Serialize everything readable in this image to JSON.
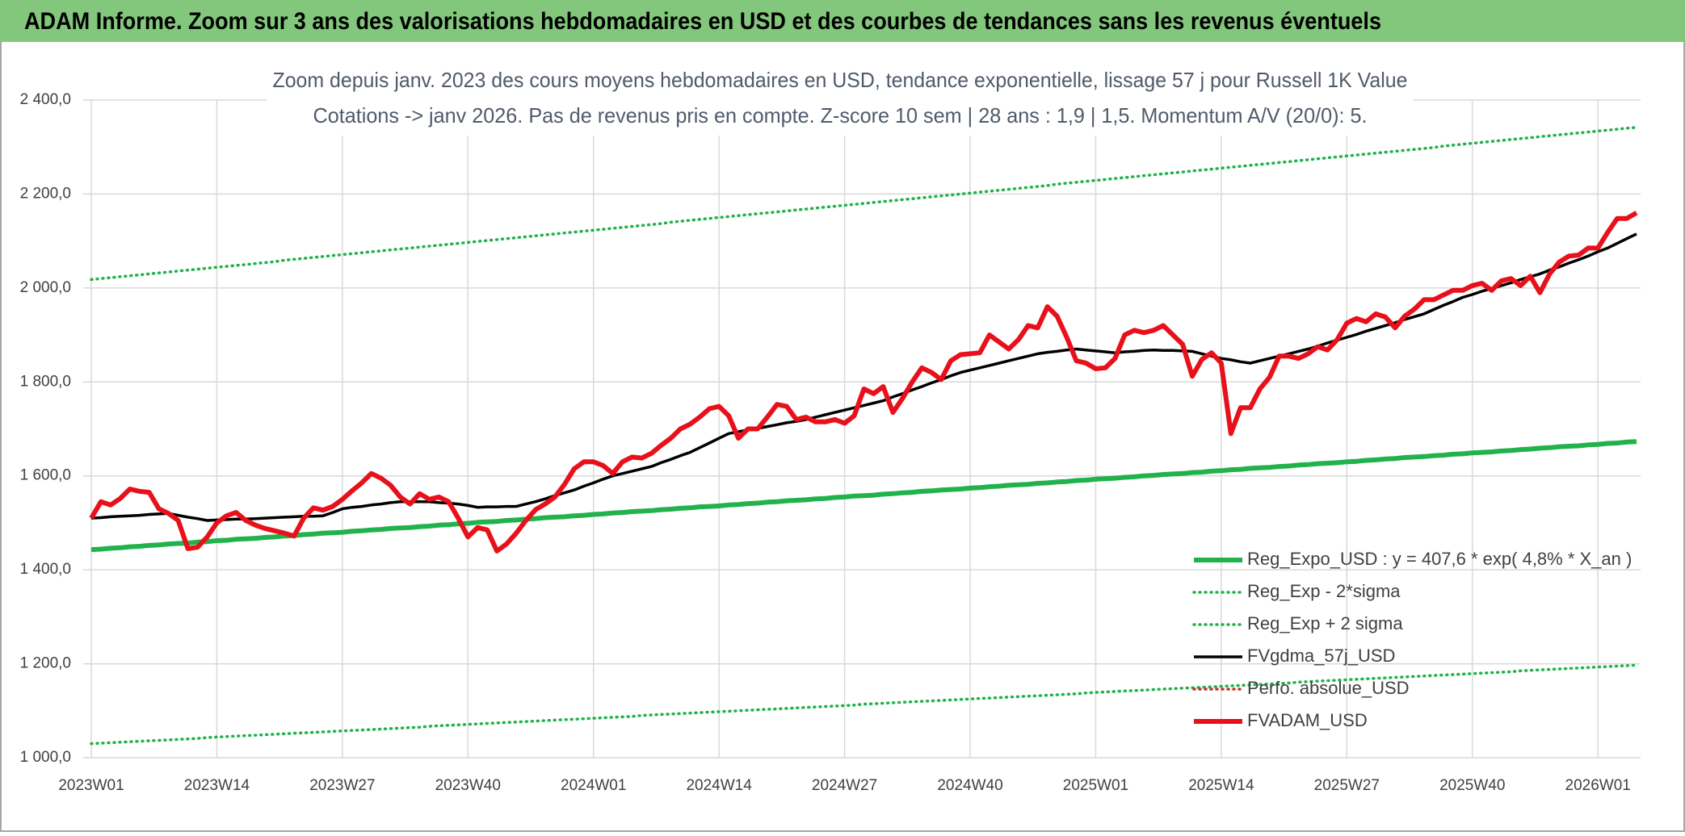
{
  "header": {
    "title": "ADAM Informe. Zoom sur 3 ans des valorisations hebdomadaires en USD et des courbes de tendances sans les revenus éventuels"
  },
  "chart_data": {
    "type": "line",
    "title": "Zoom depuis janv. 2023 des cours moyens hebdomadaires en USD, tendance exponentielle, lissage 57 j pour Russell 1K Value",
    "subtitle": "Cotations -> janv 2026. Pas de revenus pris en compte. Z-score 10 sem | 28 ans : 1,9 | 1,5. Momentum A/V (20/0): 5.",
    "categories": [
      "2023W01",
      null,
      null,
      null,
      null,
      null,
      null,
      null,
      null,
      null,
      null,
      null,
      null,
      "2023W14",
      null,
      null,
      null,
      null,
      null,
      null,
      null,
      null,
      null,
      null,
      null,
      null,
      "2023W27",
      null,
      null,
      null,
      null,
      null,
      null,
      null,
      null,
      null,
      null,
      null,
      null,
      "2023W40",
      null,
      null,
      null,
      null,
      null,
      null,
      null,
      null,
      null,
      null,
      null,
      null,
      "2024W01",
      null,
      null,
      null,
      null,
      null,
      null,
      null,
      null,
      null,
      null,
      null,
      null,
      "2024W14",
      null,
      null,
      null,
      null,
      null,
      null,
      null,
      null,
      null,
      null,
      null,
      null,
      "2024W27",
      null,
      null,
      null,
      null,
      null,
      null,
      null,
      null,
      null,
      null,
      null,
      null,
      "2024W40",
      null,
      null,
      null,
      null,
      null,
      null,
      null,
      null,
      null,
      null,
      null,
      null,
      "2025W01",
      null,
      null,
      null,
      null,
      null,
      null,
      null,
      null,
      null,
      null,
      null,
      null,
      "2025W14",
      null,
      null,
      null,
      null,
      null,
      null,
      null,
      null,
      null,
      null,
      null,
      null,
      "2025W27",
      null,
      null,
      null,
      null,
      null,
      null,
      null,
      null,
      null,
      null,
      null,
      null,
      "2025W40",
      null,
      null,
      null,
      null,
      null,
      null,
      null,
      null,
      null,
      null,
      null,
      null,
      "2026W01",
      null,
      null,
      null,
      null
    ],
    "ylim": [
      1000,
      2400
    ],
    "yticks": [
      {
        "value": 1000,
        "label": "1 000,0"
      },
      {
        "value": 1200,
        "label": "1 200,0"
      },
      {
        "value": 1400,
        "label": "1 400,0"
      },
      {
        "value": 1600,
        "label": "1 600,0"
      },
      {
        "value": 1800,
        "label": "1 800,0"
      },
      {
        "value": 2000,
        "label": "2 000,0"
      },
      {
        "value": 2200,
        "label": "2 200,0"
      },
      {
        "value": 2400,
        "label": "2 400,0"
      }
    ],
    "grid": true,
    "legend": "lower right",
    "series": [
      {
        "name": "Reg_Expo_USD : y = 407,6 * exp( 4,8% *  X_an )",
        "color": "#22b24c",
        "style": "thick",
        "values": [
          1443,
          1444,
          1446,
          1447,
          1449,
          1450,
          1452,
          1453,
          1455,
          1456,
          1457,
          1459,
          1460,
          1462,
          1463,
          1465,
          1466,
          1467,
          1469,
          1470,
          1472,
          1473,
          1475,
          1476,
          1478,
          1479,
          1480,
          1482,
          1483,
          1485,
          1486,
          1488,
          1489,
          1490,
          1492,
          1493,
          1495,
          1496,
          1498,
          1499,
          1501,
          1502,
          1503,
          1505,
          1506,
          1508,
          1509,
          1511,
          1512,
          1513,
          1515,
          1516,
          1518,
          1519,
          1521,
          1522,
          1524,
          1525,
          1526,
          1528,
          1529,
          1531,
          1532,
          1534,
          1535,
          1536,
          1538,
          1539,
          1541,
          1542,
          1544,
          1545,
          1547,
          1548,
          1549,
          1551,
          1552,
          1554,
          1555,
          1557,
          1558,
          1559,
          1561,
          1562,
          1564,
          1565,
          1567,
          1568,
          1570,
          1571,
          1572,
          1574,
          1575,
          1577,
          1578,
          1580,
          1581,
          1582,
          1584,
          1585,
          1587,
          1588,
          1590,
          1591,
          1593,
          1594,
          1595,
          1597,
          1598,
          1600,
          1601,
          1603,
          1604,
          1605,
          1607,
          1608,
          1610,
          1611,
          1613,
          1614,
          1616,
          1617,
          1618,
          1620,
          1621,
          1623,
          1624,
          1626,
          1627,
          1628,
          1630,
          1631,
          1633,
          1634,
          1636,
          1637,
          1639,
          1640,
          1641,
          1643,
          1644,
          1646,
          1647,
          1649,
          1650,
          1651,
          1653,
          1654,
          1656,
          1657,
          1659,
          1660,
          1662,
          1663,
          1664,
          1666,
          1667,
          1669,
          1670,
          1672,
          1673
        ]
      },
      {
        "name": "Reg_Exp - 2*sigma",
        "color": "#22b24c",
        "style": "dotted",
        "values": [
          1030,
          1031,
          1032,
          1033,
          1034,
          1035,
          1036,
          1037,
          1038,
          1039,
          1040,
          1041,
          1043,
          1044,
          1045,
          1046,
          1047,
          1048,
          1049,
          1050,
          1051,
          1052,
          1053,
          1054,
          1055,
          1056,
          1057,
          1058,
          1059,
          1060,
          1061,
          1062,
          1063,
          1064,
          1065,
          1067,
          1068,
          1069,
          1070,
          1071,
          1072,
          1073,
          1074,
          1075,
          1076,
          1077,
          1078,
          1079,
          1080,
          1081,
          1082,
          1083,
          1084,
          1085,
          1086,
          1087,
          1088,
          1090,
          1091,
          1092,
          1093,
          1094,
          1095,
          1096,
          1097,
          1098,
          1099,
          1100,
          1101,
          1102,
          1103,
          1104,
          1105,
          1106,
          1107,
          1108,
          1109,
          1110,
          1111,
          1112,
          1114,
          1115,
          1116,
          1117,
          1118,
          1119,
          1120,
          1121,
          1122,
          1123,
          1124,
          1125,
          1126,
          1127,
          1128,
          1129,
          1130,
          1131,
          1132,
          1133,
          1134,
          1135,
          1136,
          1138,
          1139,
          1140,
          1141,
          1142,
          1143,
          1144,
          1145,
          1146,
          1147,
          1148,
          1149,
          1150,
          1151,
          1152,
          1153,
          1154,
          1155,
          1156,
          1157,
          1158,
          1159,
          1161,
          1162,
          1163,
          1164,
          1165,
          1166,
          1167,
          1168,
          1169,
          1170,
          1171,
          1172,
          1173,
          1174,
          1175,
          1176,
          1177,
          1178,
          1179,
          1180,
          1181,
          1182,
          1183,
          1185,
          1186,
          1187,
          1188,
          1189,
          1190,
          1191,
          1192,
          1193,
          1194,
          1195,
          1196,
          1197
        ]
      },
      {
        "name": "Reg_Exp + 2 sigma",
        "color": "#22b24c",
        "style": "dotted",
        "values": [
          2018,
          2020,
          2022,
          2024,
          2026,
          2028,
          2030,
          2032,
          2034,
          2036,
          2038,
          2040,
          2042,
          2044,
          2046,
          2048,
          2050,
          2052,
          2054,
          2056,
          2059,
          2061,
          2063,
          2065,
          2067,
          2069,
          2071,
          2073,
          2075,
          2077,
          2079,
          2081,
          2083,
          2085,
          2087,
          2089,
          2091,
          2093,
          2095,
          2097,
          2099,
          2101,
          2103,
          2105,
          2107,
          2109,
          2111,
          2113,
          2115,
          2117,
          2119,
          2121,
          2123,
          2125,
          2127,
          2129,
          2131,
          2133,
          2135,
          2137,
          2140,
          2142,
          2144,
          2146,
          2148,
          2150,
          2152,
          2154,
          2156,
          2158,
          2160,
          2162,
          2164,
          2166,
          2168,
          2170,
          2172,
          2174,
          2176,
          2178,
          2180,
          2182,
          2184,
          2186,
          2188,
          2190,
          2192,
          2194,
          2196,
          2198,
          2200,
          2202,
          2204,
          2206,
          2208,
          2210,
          2212,
          2214,
          2216,
          2218,
          2221,
          2223,
          2225,
          2227,
          2229,
          2231,
          2233,
          2235,
          2237,
          2239,
          2241,
          2243,
          2245,
          2247,
          2249,
          2251,
          2253,
          2255,
          2257,
          2259,
          2261,
          2263,
          2265,
          2267,
          2269,
          2271,
          2273,
          2275,
          2277,
          2279,
          2281,
          2283,
          2285,
          2287,
          2289,
          2291,
          2293,
          2295,
          2297,
          2299,
          2302,
          2304,
          2306,
          2308,
          2310,
          2312,
          2314,
          2316,
          2318,
          2320,
          2322,
          2324,
          2326,
          2328,
          2330,
          2332,
          2334,
          2336,
          2338,
          2340,
          2342
        ]
      },
      {
        "name": "FVgdma_57j_USD",
        "color": "#000000",
        "style": "solid",
        "values": [
          1510,
          1511,
          1513,
          1514,
          1515,
          1516,
          1518,
          1519,
          1520,
          1516,
          1512,
          1509,
          1505,
          1506,
          1507,
          1508,
          1508,
          1509,
          1510,
          1511,
          1512,
          1513,
          1514,
          1514,
          1515,
          1522,
          1530,
          1533,
          1535,
          1538,
          1540,
          1543,
          1545,
          1545,
          1545,
          1545,
          1543,
          1542,
          1540,
          1537,
          1533,
          1534,
          1534,
          1535,
          1535,
          1540,
          1545,
          1551,
          1558,
          1564,
          1570,
          1578,
          1585,
          1593,
          1600,
          1605,
          1610,
          1615,
          1620,
          1628,
          1635,
          1643,
          1650,
          1660,
          1670,
          1680,
          1690,
          1694,
          1698,
          1701,
          1705,
          1709,
          1713,
          1716,
          1720,
          1725,
          1730,
          1735,
          1740,
          1745,
          1750,
          1755,
          1760,
          1768,
          1775,
          1783,
          1790,
          1798,
          1805,
          1813,
          1820,
          1825,
          1830,
          1835,
          1840,
          1845,
          1850,
          1855,
          1860,
          1863,
          1865,
          1868,
          1870,
          1868,
          1866,
          1864,
          1862,
          1864,
          1865,
          1867,
          1868,
          1867,
          1867,
          1866,
          1865,
          1860,
          1855,
          1850,
          1847,
          1843,
          1840,
          1845,
          1850,
          1855,
          1860,
          1865,
          1870,
          1876,
          1883,
          1889,
          1895,
          1901,
          1908,
          1914,
          1920,
          1926,
          1933,
          1939,
          1945,
          1954,
          1963,
          1971,
          1980,
          1986,
          1993,
          1999,
          2005,
          2011,
          2018,
          2024,
          2030,
          2038,
          2045,
          2053,
          2060,
          2068,
          2077,
          2085,
          2095,
          2105,
          2115
        ]
      },
      {
        "name": "Perfo. absolue_USD",
        "color": "#c0392b",
        "style": "dotted"
      },
      {
        "name": "FVADAM_USD",
        "color": "#e8101a",
        "style": "thick",
        "values": [
          1510,
          1545,
          1538,
          1552,
          1572,
          1567,
          1565,
          1530,
          1520,
          1505,
          1445,
          1448,
          1470,
          1500,
          1515,
          1522,
          1505,
          1495,
          1488,
          1483,
          1478,
          1472,
          1510,
          1532,
          1527,
          1535,
          1550,
          1568,
          1585,
          1605,
          1595,
          1580,
          1555,
          1540,
          1562,
          1550,
          1555,
          1545,
          1510,
          1470,
          1490,
          1485,
          1440,
          1455,
          1478,
          1505,
          1528,
          1540,
          1555,
          1582,
          1615,
          1630,
          1630,
          1622,
          1605,
          1630,
          1640,
          1638,
          1648,
          1665,
          1680,
          1700,
          1710,
          1725,
          1743,
          1748,
          1728,
          1680,
          1700,
          1700,
          1725,
          1752,
          1748,
          1720,
          1725,
          1715,
          1715,
          1720,
          1712,
          1728,
          1785,
          1775,
          1790,
          1735,
          1765,
          1800,
          1830,
          1820,
          1805,
          1845,
          1858,
          1860,
          1862,
          1900,
          1885,
          1870,
          1890,
          1920,
          1915,
          1960,
          1940,
          1895,
          1845,
          1840,
          1828,
          1830,
          1850,
          1900,
          1910,
          1905,
          1910,
          1920,
          1900,
          1880,
          1812,
          1848,
          1862,
          1840,
          1690,
          1745,
          1745,
          1785,
          1810,
          1855,
          1855,
          1850,
          1860,
          1875,
          1868,
          1890,
          1925,
          1935,
          1928,
          1945,
          1938,
          1915,
          1940,
          1955,
          1975,
          1975,
          1985,
          1995,
          1995,
          2005,
          2010,
          1995,
          2015,
          2020,
          2005,
          2025,
          1990,
          2030,
          2055,
          2068,
          2070,
          2085,
          2085,
          2118,
          2148,
          2148,
          2160
        ]
      }
    ]
  }
}
